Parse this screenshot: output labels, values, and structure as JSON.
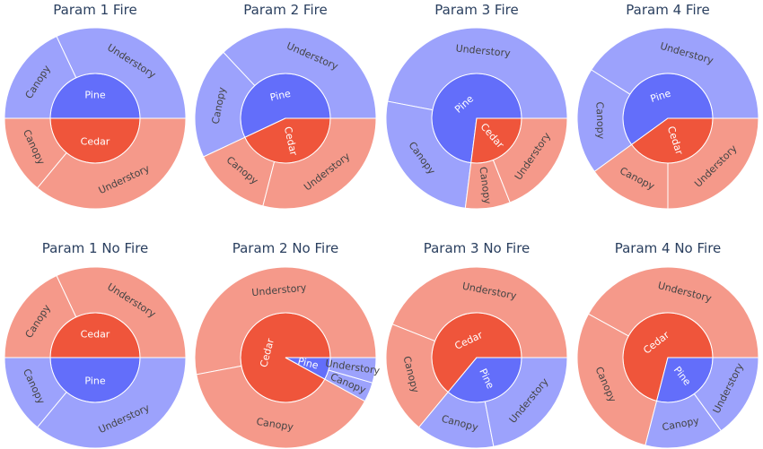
{
  "colors": {
    "pine": "#636efa",
    "cedar": "#ef553b",
    "pine_outer": "#9ca2fc",
    "cedar_outer": "#f5998a",
    "title": "#2a3f5f",
    "label_light": "#ffffff",
    "label_dark": "#444444",
    "stroke": "#ffffff"
  },
  "chart_data": [
    {
      "type": "sunburst",
      "title": "Param 1 Fire",
      "start_group": "Pine",
      "groups": [
        {
          "name": "Pine",
          "color": "pine",
          "value": 0.5,
          "children": [
            {
              "name": "Understory",
              "value": 0.32
            },
            {
              "name": "Canopy",
              "value": 0.18
            }
          ]
        },
        {
          "name": "Cedar",
          "color": "cedar",
          "value": 0.5,
          "children": [
            {
              "name": "Canopy",
              "value": 0.14
            },
            {
              "name": "Understory",
              "value": 0.36
            }
          ]
        }
      ]
    },
    {
      "type": "sunburst",
      "title": "Param 2 Fire",
      "start_group": "Pine",
      "groups": [
        {
          "name": "Pine",
          "color": "pine",
          "value": 0.57,
          "children": [
            {
              "name": "Understory",
              "value": 0.37
            },
            {
              "name": "Canopy",
              "value": 0.2
            }
          ]
        },
        {
          "name": "Cedar",
          "color": "cedar",
          "value": 0.43,
          "children": [
            {
              "name": "Canopy",
              "value": 0.14
            },
            {
              "name": "Understory",
              "value": 0.29
            }
          ]
        }
      ]
    },
    {
      "type": "sunburst",
      "title": "Param 3 Fire",
      "start_group": "Pine",
      "groups": [
        {
          "name": "Pine",
          "color": "pine",
          "value": 0.73,
          "children": [
            {
              "name": "Understory",
              "value": 0.47
            },
            {
              "name": "Canopy",
              "value": 0.26
            }
          ]
        },
        {
          "name": "Cedar",
          "color": "cedar",
          "value": 0.27,
          "children": [
            {
              "name": "Canopy",
              "value": 0.08
            },
            {
              "name": "Understory",
              "value": 0.19
            }
          ]
        }
      ]
    },
    {
      "type": "sunburst",
      "title": "Param 4 Fire",
      "start_group": "Pine",
      "groups": [
        {
          "name": "Pine",
          "color": "pine",
          "value": 0.6,
          "children": [
            {
              "name": "Understory",
              "value": 0.41
            },
            {
              "name": "Canopy",
              "value": 0.19
            }
          ]
        },
        {
          "name": "Cedar",
          "color": "cedar",
          "value": 0.4,
          "children": [
            {
              "name": "Canopy",
              "value": 0.15
            },
            {
              "name": "Understory",
              "value": 0.25
            }
          ]
        }
      ]
    },
    {
      "type": "sunburst",
      "title": "Param 1 No Fire",
      "start_group": "Cedar",
      "groups": [
        {
          "name": "Cedar",
          "color": "cedar",
          "value": 0.5,
          "children": [
            {
              "name": "Understory",
              "value": 0.32
            },
            {
              "name": "Canopy",
              "value": 0.18
            }
          ]
        },
        {
          "name": "Pine",
          "color": "pine",
          "value": 0.5,
          "children": [
            {
              "name": "Canopy",
              "value": 0.14
            },
            {
              "name": "Understory",
              "value": 0.36
            }
          ]
        }
      ]
    },
    {
      "type": "sunburst",
      "title": "Param 2 No Fire",
      "start_group": "Cedar",
      "groups": [
        {
          "name": "Cedar",
          "color": "cedar",
          "value": 0.92,
          "children": [
            {
              "name": "Understory",
              "value": 0.53
            },
            {
              "name": "Canopy",
              "value": 0.39
            }
          ]
        },
        {
          "name": "Pine",
          "color": "pine",
          "value": 0.08,
          "children": [
            {
              "name": "Canopy",
              "value": 0.035
            },
            {
              "name": "Understory",
              "value": 0.045
            }
          ]
        }
      ]
    },
    {
      "type": "sunburst",
      "title": "Param 3 No Fire",
      "start_group": "Cedar",
      "groups": [
        {
          "name": "Cedar",
          "color": "cedar",
          "value": 0.64,
          "children": [
            {
              "name": "Understory",
              "value": 0.44
            },
            {
              "name": "Canopy",
              "value": 0.2
            }
          ]
        },
        {
          "name": "Pine",
          "color": "pine",
          "value": 0.36,
          "children": [
            {
              "name": "Canopy",
              "value": 0.14
            },
            {
              "name": "Understory",
              "value": 0.22
            }
          ]
        }
      ]
    },
    {
      "type": "sunburst",
      "title": "Param 4 No Fire",
      "start_group": "Cedar",
      "groups": [
        {
          "name": "Cedar",
          "color": "cedar",
          "value": 0.71,
          "children": [
            {
              "name": "Understory",
              "value": 0.42
            },
            {
              "name": "Canopy",
              "value": 0.29
            }
          ]
        },
        {
          "name": "Pine",
          "color": "pine",
          "value": 0.29,
          "children": [
            {
              "name": "Canopy",
              "value": 0.14
            },
            {
              "name": "Understory",
              "value": 0.15
            }
          ]
        }
      ]
    }
  ]
}
